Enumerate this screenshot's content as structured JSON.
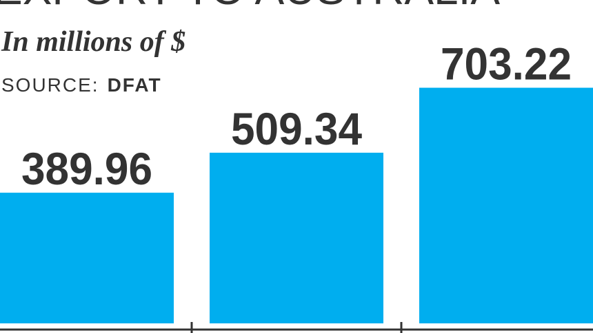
{
  "chart_data": {
    "type": "bar",
    "title": "EXPORT TO AUSTRALIA",
    "subtitle": "In millions of $",
    "source": {
      "label": "SOURCE:",
      "name": "DFAT"
    },
    "values": [
      389.96,
      509.34,
      703.22
    ],
    "color": "#00aeef"
  }
}
